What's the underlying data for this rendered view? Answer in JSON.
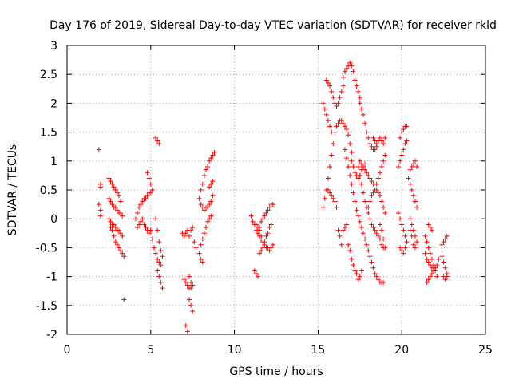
{
  "chart_data": {
    "type": "scatter",
    "title": "Day 176 of 2019, Sidereal Day-to-day VTEC variation (SDTVAR) for receiver rkld",
    "xlabel": "GPS time / hours",
    "ylabel": "SDTVAR / TECUs",
    "xlim": [
      0,
      25
    ],
    "ylim": [
      -2,
      3
    ],
    "xticks": [
      "0",
      "5",
      "10",
      "15",
      "20",
      "25"
    ],
    "yticks": [
      "-2",
      "-1.5",
      "-1",
      "-0.5",
      "0",
      "0.5",
      "1",
      "1.5",
      "2",
      "2.5",
      "3"
    ],
    "grid": true,
    "marker": "+",
    "color": "#ff0000",
    "segments": [
      {
        "x": [
          1.9,
          2.0,
          2.0
        ],
        "y": [
          1.2,
          0.6,
          0.55
        ]
      },
      {
        "x": [
          1.9,
          2.0,
          2.0
        ],
        "y": [
          0.25,
          0.15,
          0.05
        ]
      },
      {
        "x": [
          2.5,
          2.6,
          2.7,
          2.8,
          2.9,
          3.0,
          3.1,
          3.2
        ],
        "y": [
          0.7,
          0.65,
          0.6,
          0.55,
          0.5,
          0.45,
          0.4,
          0.3
        ]
      },
      {
        "x": [
          2.5,
          2.6,
          2.7,
          2.8,
          2.9,
          3.0,
          3.1,
          3.2,
          3.3
        ],
        "y": [
          0.35,
          0.3,
          0.25,
          0.2,
          0.2,
          0.15,
          0.1,
          0.1,
          0.05
        ]
      },
      {
        "x": [
          2.5,
          2.6,
          2.7,
          2.8,
          2.9,
          3.0,
          3.1,
          3.2,
          3.3
        ],
        "y": [
          0.0,
          -0.05,
          -0.1,
          -0.1,
          -0.15,
          -0.2,
          -0.2,
          -0.25,
          -0.3
        ]
      },
      {
        "x": [
          2.6,
          2.7,
          2.8,
          2.9,
          3.0,
          3.1,
          3.2,
          3.3,
          3.4
        ],
        "y": [
          -0.15,
          -0.2,
          -0.3,
          -0.4,
          -0.45,
          -0.5,
          -0.55,
          -0.6,
          -0.65
        ]
      },
      {
        "x": [
          3.4
        ],
        "y": [
          -1.4
        ]
      },
      {
        "x": [
          4.1,
          4.2,
          4.3,
          4.4,
          4.5,
          4.6,
          4.7,
          4.8,
          4.9,
          5.0,
          5.1
        ],
        "y": [
          0.0,
          0.1,
          0.2,
          0.25,
          0.3,
          0.35,
          0.35,
          0.4,
          0.45,
          0.45,
          0.5
        ]
      },
      {
        "x": [
          4.2,
          4.3,
          4.4,
          4.5,
          4.6,
          4.7,
          4.8,
          4.9,
          5.0
        ],
        "y": [
          -0.15,
          -0.1,
          -0.05,
          0.0,
          -0.1,
          -0.15,
          -0.2,
          -0.25,
          -0.2
        ]
      },
      {
        "x": [
          4.8,
          4.9,
          5.0,
          5.1
        ],
        "y": [
          0.8,
          0.7,
          0.6,
          0.5
        ]
      },
      {
        "x": [
          5.3,
          5.4,
          5.5
        ],
        "y": [
          1.4,
          1.35,
          1.3
        ]
      },
      {
        "x": [
          5.0,
          5.1,
          5.2,
          5.3,
          5.4,
          5.5,
          5.6
        ],
        "y": [
          -0.2,
          -0.35,
          -0.5,
          -0.6,
          -0.7,
          -0.75,
          -0.8
        ]
      },
      {
        "x": [
          5.3,
          5.4,
          5.5,
          5.6,
          5.7
        ],
        "y": [
          0.0,
          -0.2,
          -0.4,
          -0.55,
          -0.65
        ]
      },
      {
        "x": [
          5.4,
          5.5,
          5.6,
          5.7
        ],
        "y": [
          -0.9,
          -1.0,
          -1.1,
          -1.2
        ]
      },
      {
        "x": [
          6.9,
          7.0,
          7.1,
          7.2
        ],
        "y": [
          -0.25,
          -0.3,
          -0.25,
          -0.2
        ]
      },
      {
        "x": [
          7.3,
          7.4,
          7.5
        ],
        "y": [
          -0.3,
          -0.2,
          -0.15
        ]
      },
      {
        "x": [
          7.0,
          7.1,
          7.2,
          7.3,
          7.4
        ],
        "y": [
          -1.05,
          -1.1,
          -1.15,
          -1.2,
          -1.2
        ]
      },
      {
        "x": [
          7.3,
          7.4,
          7.5
        ],
        "y": [
          -1.0,
          -1.1,
          -1.15
        ]
      },
      {
        "x": [
          7.3,
          7.4,
          7.5
        ],
        "y": [
          -1.4,
          -1.5,
          -1.6
        ]
      },
      {
        "x": [
          7.1,
          7.2
        ],
        "y": [
          -1.85,
          -1.95
        ]
      },
      {
        "x": [
          7.6,
          7.7
        ],
        "y": [
          -0.4,
          -0.5
        ]
      },
      {
        "x": [
          7.9,
          8.0,
          8.1,
          8.2,
          8.3,
          8.4,
          8.5,
          8.6,
          8.7,
          8.8
        ],
        "y": [
          0.35,
          0.5,
          0.6,
          0.75,
          0.85,
          0.9,
          1.0,
          1.05,
          1.1,
          1.15
        ]
      },
      {
        "x": [
          8.0,
          8.1,
          8.2,
          8.3,
          8.4,
          8.5,
          8.6,
          8.7
        ],
        "y": [
          0.25,
          0.2,
          0.15,
          0.2,
          0.2,
          0.25,
          0.3,
          0.4
        ]
      },
      {
        "x": [
          8.0,
          8.1,
          8.2,
          8.3,
          8.4,
          8.5,
          8.6
        ],
        "y": [
          -0.45,
          -0.35,
          -0.25,
          -0.15,
          -0.05,
          0.0,
          0.05
        ]
      },
      {
        "x": [
          7.9,
          8.0,
          8.1
        ],
        "y": [
          -0.6,
          -0.7,
          -0.75
        ]
      },
      {
        "x": [
          8.5,
          8.6,
          8.7
        ],
        "y": [
          0.55,
          0.6,
          0.65
        ]
      },
      {
        "x": [
          11.0,
          11.1,
          11.2,
          11.3,
          11.4,
          11.5,
          11.6
        ],
        "y": [
          0.05,
          -0.05,
          -0.1,
          -0.2,
          -0.25,
          -0.3,
          -0.35
        ]
      },
      {
        "x": [
          11.2,
          11.3,
          11.4
        ],
        "y": [
          -0.9,
          -0.95,
          -1.0
        ]
      },
      {
        "x": [
          11.3,
          11.4,
          11.5,
          11.6,
          11.7,
          11.8,
          11.9,
          12.0,
          12.1,
          12.2,
          12.3
        ],
        "y": [
          -0.1,
          -0.15,
          -0.2,
          -0.3,
          -0.4,
          -0.45,
          -0.5,
          -0.5,
          -0.55,
          -0.5,
          -0.45
        ]
      },
      {
        "x": [
          11.4,
          11.5,
          11.6,
          11.7,
          11.8,
          11.9,
          12.0,
          12.1,
          12.2,
          12.3
        ],
        "y": [
          -0.2,
          -0.15,
          -0.05,
          0.0,
          0.05,
          0.1,
          0.15,
          0.2,
          0.25,
          0.25
        ]
      },
      {
        "x": [
          11.5,
          11.6,
          11.7,
          11.8,
          11.9,
          12.0,
          12.1,
          12.2
        ],
        "y": [
          -0.6,
          -0.55,
          -0.5,
          -0.4,
          -0.3,
          -0.25,
          -0.15,
          -0.1
        ]
      },
      {
        "x": [
          15.3,
          15.4,
          15.5,
          15.6,
          15.7,
          15.8
        ],
        "y": [
          2.0,
          1.9,
          1.8,
          1.7,
          1.6,
          1.5
        ]
      },
      {
        "x": [
          15.5,
          15.6,
          15.7,
          15.8,
          15.9,
          16.0,
          16.1,
          16.2,
          16.3,
          16.4,
          16.5
        ],
        "y": [
          2.4,
          2.35,
          2.3,
          2.2,
          2.1,
          2.0,
          1.95,
          2.0,
          2.1,
          2.2,
          2.3
        ]
      },
      {
        "x": [
          16.5,
          16.6,
          16.7,
          16.8,
          16.9,
          17.0,
          17.1,
          17.2,
          17.3,
          17.4,
          17.5
        ],
        "y": [
          2.45,
          2.55,
          2.6,
          2.65,
          2.7,
          2.65,
          2.55,
          2.4,
          2.3,
          2.2,
          2.1
        ]
      },
      {
        "x": [
          17.5,
          17.6,
          17.7,
          17.8,
          17.9,
          18.0,
          18.1,
          18.2,
          18.3,
          18.4,
          18.5
        ],
        "y": [
          2.0,
          1.9,
          1.8,
          1.65,
          1.5,
          1.4,
          1.3,
          1.25,
          1.2,
          1.2,
          1.25
        ]
      },
      {
        "x": [
          15.3,
          15.4,
          15.5,
          15.6,
          15.7,
          15.8,
          15.9,
          16.0,
          16.1
        ],
        "y": [
          0.2,
          0.35,
          0.5,
          0.7,
          0.9,
          1.1,
          1.3,
          1.5,
          1.6
        ]
      },
      {
        "x": [
          16.1,
          16.2,
          16.3,
          16.4,
          16.5,
          16.6,
          16.7,
          16.8,
          16.9,
          17.0
        ],
        "y": [
          1.6,
          1.65,
          1.7,
          1.7,
          1.65,
          1.6,
          1.55,
          1.45,
          1.3,
          1.15
        ]
      },
      {
        "x": [
          17.0,
          17.1,
          17.2,
          17.3,
          17.4,
          17.5,
          17.6,
          17.7,
          17.8
        ],
        "y": [
          1.0,
          0.9,
          0.8,
          0.75,
          0.7,
          0.75,
          0.85,
          0.9,
          0.95
        ]
      },
      {
        "x": [
          15.6,
          15.7,
          15.8,
          15.9,
          16.0,
          16.1
        ],
        "y": [
          0.5,
          0.45,
          0.4,
          0.35,
          0.3,
          0.2
        ]
      },
      {
        "x": [
          16.2,
          16.3,
          16.4
        ],
        "y": [
          -0.2,
          -0.3,
          -0.45
        ]
      },
      {
        "x": [
          16.5,
          16.6,
          16.7
        ],
        "y": [
          -0.2,
          -0.15,
          -0.1
        ]
      },
      {
        "x": [
          16.8,
          16.9,
          17.0,
          17.1,
          17.2
        ],
        "y": [
          -0.45,
          -0.55,
          -0.7,
          -0.8,
          -0.9
        ]
      },
      {
        "x": [
          17.2,
          17.3,
          17.4,
          17.5,
          17.6
        ],
        "y": [
          -0.9,
          -0.95,
          -1.05,
          -1.0,
          -0.9
        ]
      },
      {
        "x": [
          16.6,
          16.7,
          16.8,
          16.9,
          17.0,
          17.1,
          17.2,
          17.3,
          17.4,
          17.5,
          17.6,
          17.7,
          17.8,
          17.9,
          18.0,
          18.1,
          18.2,
          18.3,
          18.4,
          18.5,
          18.6,
          18.7,
          18.8,
          18.9
        ],
        "y": [
          1.2,
          1.05,
          0.9,
          0.75,
          0.6,
          0.45,
          0.3,
          0.15,
          0.05,
          -0.05,
          -0.15,
          -0.25,
          -0.35,
          -0.45,
          -0.55,
          -0.65,
          -0.75,
          -0.85,
          -0.95,
          -1.0,
          -1.05,
          -1.1,
          -1.1,
          -1.1
        ]
      },
      {
        "x": [
          17.4,
          17.5,
          17.6,
          17.7,
          17.8,
          17.9,
          18.0,
          18.1,
          18.2,
          18.3,
          18.4,
          18.5,
          18.6,
          18.7,
          18.8,
          18.9
        ],
        "y": [
          0.9,
          0.75,
          0.6,
          0.45,
          0.3,
          0.2,
          0.1,
          0.0,
          -0.1,
          -0.15,
          -0.2,
          -0.25,
          -0.3,
          -0.35,
          -0.45,
          -0.5
        ]
      },
      {
        "x": [
          17.5,
          17.6,
          17.7,
          17.8,
          17.9,
          18.0,
          18.1,
          18.2,
          18.3
        ],
        "y": [
          1.0,
          0.95,
          0.9,
          0.85,
          0.8,
          0.75,
          0.7,
          0.65,
          0.6
        ]
      },
      {
        "x": [
          18.0,
          18.1,
          18.2,
          18.3,
          18.4,
          18.5,
          18.6,
          18.7,
          18.8,
          18.9,
          19.0
        ],
        "y": [
          0.2,
          0.3,
          0.4,
          0.45,
          0.5,
          0.6,
          0.7,
          0.8,
          0.9,
          1.0,
          1.1
        ]
      },
      {
        "x": [
          18.3,
          18.4,
          18.5,
          18.6,
          18.7,
          18.8,
          18.9,
          19.0
        ],
        "y": [
          1.4,
          1.35,
          1.3,
          1.35,
          1.4,
          1.35,
          1.3,
          1.4
        ]
      },
      {
        "x": [
          18.5,
          18.6,
          18.7,
          18.8,
          18.9,
          19.0
        ],
        "y": [
          0.5,
          0.45,
          0.4,
          0.3,
          0.2,
          0.1
        ]
      },
      {
        "x": [
          18.7,
          18.8,
          18.9,
          19.0
        ],
        "y": [
          -0.1,
          -0.2,
          -0.35,
          -0.5
        ]
      },
      {
        "x": [
          19.9,
          20.0,
          20.1,
          20.2,
          20.3
        ],
        "y": [
          1.4,
          1.5,
          1.55,
          1.6,
          1.6
        ]
      },
      {
        "x": [
          19.8,
          19.9,
          20.0,
          20.1,
          20.2,
          20.3
        ],
        "y": [
          0.9,
          1.0,
          1.1,
          1.2,
          1.3,
          1.35
        ]
      },
      {
        "x": [
          19.8,
          19.9,
          20.0,
          20.1,
          20.2,
          20.3
        ],
        "y": [
          0.1,
          0.0,
          -0.1,
          -0.2,
          -0.3,
          -0.4
        ]
      },
      {
        "x": [
          19.9,
          20.0,
          20.1,
          20.2
        ],
        "y": [
          -0.5,
          -0.55,
          -0.6,
          -0.5
        ]
      },
      {
        "x": [
          20.5,
          20.6,
          20.7,
          20.8,
          20.9
        ],
        "y": [
          0.85,
          0.9,
          0.95,
          1.0,
          0.9
        ]
      },
      {
        "x": [
          20.4,
          20.5,
          20.6,
          20.7,
          20.8,
          20.9
        ],
        "y": [
          0.7,
          0.6,
          0.5,
          0.4,
          0.3,
          0.2
        ]
      },
      {
        "x": [
          20.5,
          20.6,
          20.7,
          20.8,
          20.9
        ],
        "y": [
          0.0,
          -0.1,
          -0.2,
          -0.3,
          -0.4
        ]
      },
      {
        "x": [
          20.5,
          20.6,
          20.7,
          20.8
        ],
        "y": [
          -0.2,
          -0.3,
          -0.45,
          -0.5
        ]
      },
      {
        "x": [
          21.4,
          21.5,
          21.6,
          21.7,
          21.8,
          21.9,
          22.0,
          22.1,
          22.2
        ],
        "y": [
          -0.6,
          -0.7,
          -0.75,
          -0.8,
          -0.85,
          -0.9,
          -0.85,
          -0.8,
          -0.7
        ]
      },
      {
        "x": [
          21.4,
          21.5,
          21.6,
          21.7,
          21.8,
          21.9,
          22.0,
          22.1
        ],
        "y": [
          -0.3,
          -0.4,
          -0.5,
          -0.6,
          -0.7,
          -0.8,
          -0.9,
          -1.0
        ]
      },
      {
        "x": [
          21.5,
          21.6,
          21.7,
          21.8,
          21.9,
          22.0
        ],
        "y": [
          -1.1,
          -1.05,
          -1.0,
          -0.95,
          -0.9,
          -0.85
        ]
      },
      {
        "x": [
          21.6,
          21.7,
          21.8
        ],
        "y": [
          -0.1,
          -0.15,
          -0.2
        ]
      },
      {
        "x": [
          22.4,
          22.5,
          22.6,
          22.7
        ],
        "y": [
          -0.45,
          -0.4,
          -0.35,
          -0.3
        ]
      },
      {
        "x": [
          22.4,
          22.5,
          22.6,
          22.7
        ],
        "y": [
          -0.65,
          -0.75,
          -0.85,
          -0.95
        ]
      },
      {
        "x": [
          22.5,
          22.6,
          22.7
        ],
        "y": [
          -1.0,
          -1.05,
          -1.0
        ]
      }
    ]
  }
}
